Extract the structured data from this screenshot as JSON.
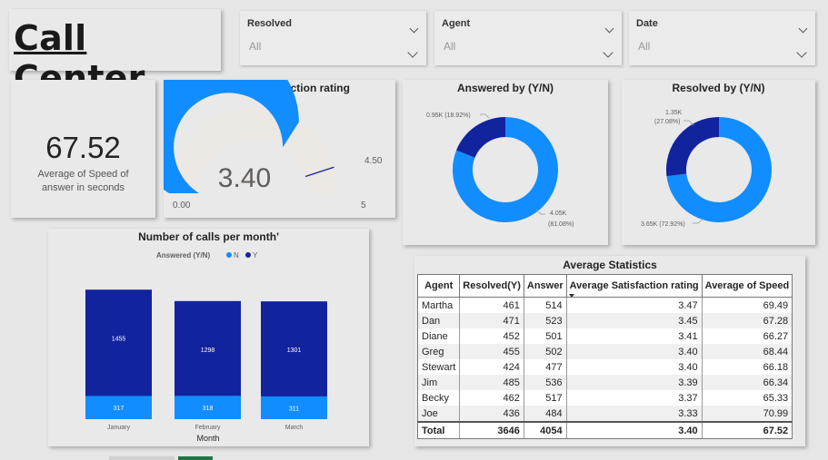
{
  "header": {
    "title": "Call Center"
  },
  "slicers": [
    {
      "label": "Resolved",
      "value": "All"
    },
    {
      "label": "Agent",
      "value": "All"
    },
    {
      "label": "Date",
      "value": "All"
    }
  ],
  "kpi": {
    "value": "67.52",
    "caption": "Average of Speed of answer in seconds"
  },
  "gauge": {
    "title": "Average Satisfaction rating",
    "value_label": "3.40",
    "value": 3.4,
    "min": 0,
    "max": 5,
    "min_label": "0.00",
    "max_label": "5",
    "target": 4.5,
    "target_label": "4.50",
    "fill_color": "#118dff",
    "track_color": "#ece8e3"
  },
  "answered_donut": {
    "title": "Answered by (Y/N)",
    "chart_data": {
      "type": "pie",
      "labels": [
        "Y",
        "N"
      ],
      "values": [
        4050,
        950
      ],
      "value_labels": [
        "4.05K",
        "0.95K"
      ],
      "percent_labels": [
        "(81.08%)",
        "(18.92%)"
      ]
    },
    "colors": [
      "#118dff",
      "#12239e"
    ]
  },
  "resolved_donut": {
    "title": "Resolved by (Y/N)",
    "chart_data": {
      "type": "pie",
      "labels": [
        "Y",
        "N"
      ],
      "values": [
        3650,
        1350
      ],
      "value_labels": [
        "3.65K",
        "1.35K"
      ],
      "percent_labels": [
        "(72.92%)",
        "(27.08%)"
      ]
    },
    "colors": [
      "#118dff",
      "#12239e"
    ]
  },
  "calls_chart": {
    "title": "Number of calls per month'",
    "legend_title": "Answered (Y/N)",
    "legend": [
      {
        "name": "N",
        "color": "#118dff"
      },
      {
        "name": "Y",
        "color": "#12239e"
      }
    ],
    "xlabel": "Month",
    "chart_data": {
      "type": "bar",
      "categories": [
        "January",
        "February",
        "March"
      ],
      "series": [
        {
          "name": "N",
          "values": [
            317,
            318,
            311
          ]
        },
        {
          "name": "Y",
          "values": [
            1455,
            1298,
            1301
          ]
        }
      ],
      "stacked": true
    }
  },
  "stats_table": {
    "title": "Average Statistics",
    "columns": [
      "Agent",
      "Resolved(Y)",
      "Answer",
      "Average Satisfaction rating",
      "Average of Speed"
    ],
    "rows": [
      [
        "Martha",
        "461",
        "514",
        "3.47",
        "69.49"
      ],
      [
        "Dan",
        "471",
        "523",
        "3.45",
        "67.28"
      ],
      [
        "Diane",
        "452",
        "501",
        "3.41",
        "66.27"
      ],
      [
        "Greg",
        "455",
        "502",
        "3.40",
        "68.44"
      ],
      [
        "Stewart",
        "424",
        "477",
        "3.40",
        "66.18"
      ],
      [
        "Jim",
        "485",
        "536",
        "3.39",
        "66.34"
      ],
      [
        "Becky",
        "462",
        "517",
        "3.37",
        "65.33"
      ],
      [
        "Joe",
        "436",
        "484",
        "3.33",
        "70.99"
      ]
    ],
    "total": [
      "Total",
      "3646",
      "4054",
      "3.40",
      "67.52"
    ]
  }
}
